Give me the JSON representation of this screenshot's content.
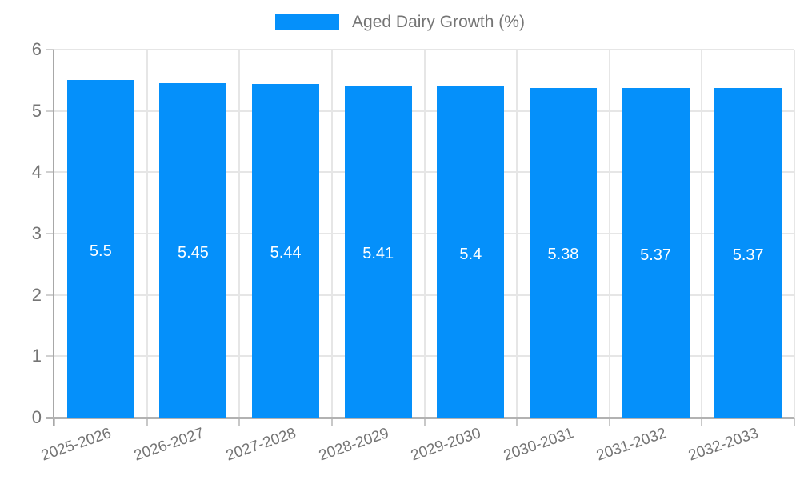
{
  "chart_data": {
    "type": "bar",
    "title": "",
    "legend_label": "Aged Dairy Growth (%)",
    "legend_position": "top",
    "categories": [
      "2025-2026",
      "2026-2027",
      "2027-2028",
      "2028-2029",
      "2029-2030",
      "2030-2031",
      "2031-2032",
      "2032-2033"
    ],
    "series": [
      {
        "name": "Aged Dairy Growth (%)",
        "values": [
          5.5,
          5.45,
          5.44,
          5.41,
          5.4,
          5.38,
          5.37,
          5.37
        ],
        "value_labels": [
          "5.5",
          "5.45",
          "5.44",
          "5.41",
          "5.4",
          "5.38",
          "5.37",
          "5.37"
        ]
      }
    ],
    "xlabel": "",
    "ylabel": "",
    "ylim": [
      0,
      6
    ],
    "yticks": [
      0,
      1,
      2,
      3,
      4,
      5,
      6
    ],
    "grid": true,
    "colors": {
      "bar": "#0590fa",
      "bar_value_text": "#ffffff",
      "axis_text": "#757575",
      "gridline": "#e6e6e6",
      "axis_line": "#a8a8a8"
    }
  }
}
